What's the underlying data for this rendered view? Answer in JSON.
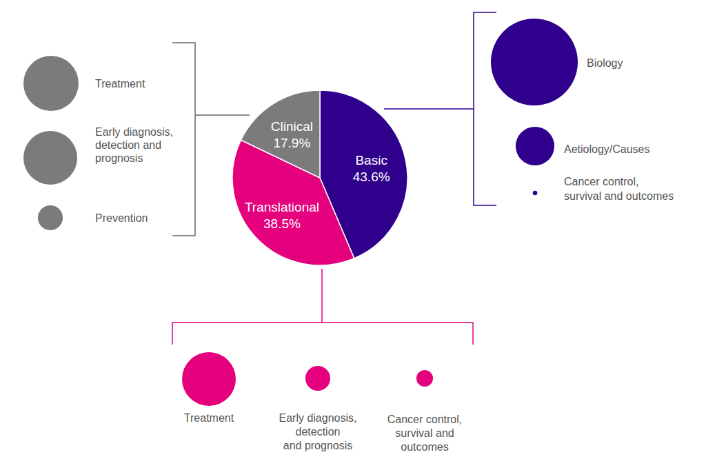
{
  "chart_data": {
    "type": "pie",
    "categories": [
      "Basic",
      "Translational",
      "Clinical"
    ],
    "values": [
      43.6,
      38.5,
      17.9
    ],
    "value_labels": [
      "43.6%",
      "38.5%",
      "17.9%"
    ],
    "colors": [
      "#2e008b",
      "#e5007d",
      "#7b7b7b"
    ],
    "subcategories": [
      [
        {
          "label": [
            "Biology"
          ],
          "size": 36.3
        },
        {
          "label": [
            "Aetiology/Causes"
          ],
          "size": 7.2
        },
        {
          "label": [
            "Cancer control,",
            "survival and outcomes"
          ],
          "size": 0.1
        }
      ],
      [
        {
          "label": [
            "Treatment"
          ],
          "size": 29.4
        },
        {
          "label": [
            "Early diagnosis,",
            "detection",
            "and prognosis"
          ],
          "size": 6.3
        },
        {
          "label": [
            "Cancer control,",
            "survival and",
            "outcomes"
          ],
          "size": 2.8
        }
      ],
      [
        {
          "label": [
            "Treatment"
          ],
          "size": 8.3
        },
        {
          "label": [
            "Early diagnosis,",
            "detection and",
            "prognosis"
          ],
          "size": 7.9
        },
        {
          "label": [
            "Prevention"
          ],
          "size": 1.7
        }
      ]
    ]
  }
}
